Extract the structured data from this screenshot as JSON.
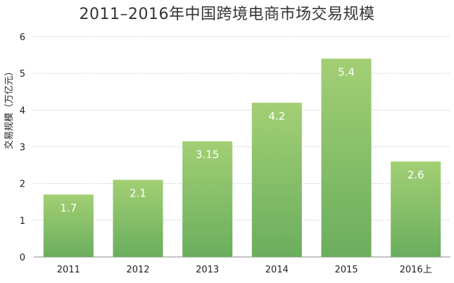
{
  "chart_data": {
    "type": "bar",
    "title": "2011–2016年中国跨境电商市场交易规模",
    "ylabel": "交易规模（万亿元）",
    "xlabel": "",
    "categories": [
      "2011",
      "2012",
      "2013",
      "2014",
      "2015",
      "2016上"
    ],
    "values": [
      1.7,
      2.1,
      3.15,
      4.2,
      5.4,
      2.6
    ],
    "data_labels": [
      "1.7",
      "2.1",
      "3.15",
      "4.2",
      "5.4",
      "2.6"
    ],
    "ylim": [
      0,
      6
    ],
    "yticks": [
      "0",
      "1",
      "2",
      "3",
      "4",
      "5",
      "6"
    ],
    "grid": true,
    "legend": "none",
    "colors": {
      "bar_top": "#a3cf74",
      "bar_bottom": "#6aae5e",
      "grid": "#bfbfbf",
      "axis": "#888888"
    }
  }
}
